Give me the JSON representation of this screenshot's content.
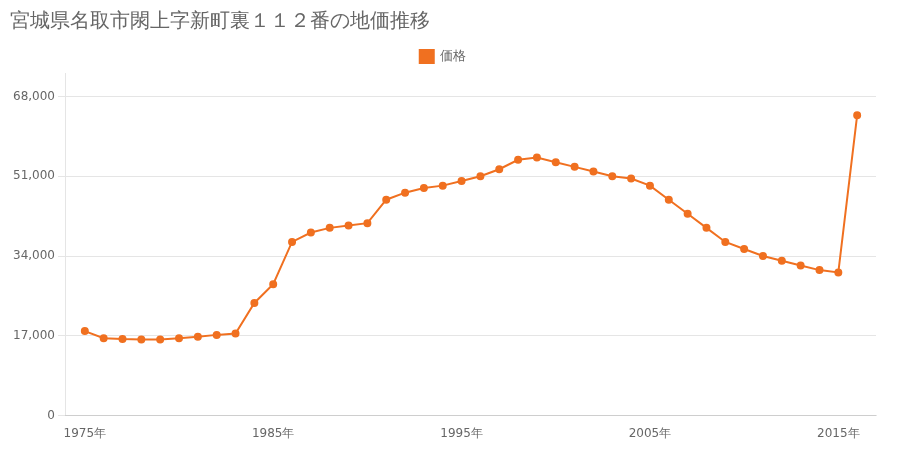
{
  "chart_data": {
    "type": "line",
    "title": "宮城県名取市閖上字新町裏１１２番の地価推移",
    "x": [
      1975,
      1976,
      1977,
      1978,
      1979,
      1980,
      1981,
      1982,
      1983,
      1984,
      1985,
      1986,
      1987,
      1988,
      1989,
      1990,
      1991,
      1992,
      1993,
      1994,
      1995,
      1996,
      1997,
      1998,
      1999,
      2000,
      2001,
      2002,
      2003,
      2004,
      2005,
      2006,
      2007,
      2008,
      2009,
      2010,
      2011,
      2012,
      2013,
      2014,
      2015,
      2016
    ],
    "series": [
      {
        "name": "価格",
        "color": "#F07020",
        "marker": "circle",
        "values": [
          18000,
          16500,
          16300,
          16200,
          16200,
          16500,
          16800,
          17200,
          17500,
          24000,
          28000,
          37000,
          39000,
          40000,
          40500,
          41000,
          46000,
          47500,
          48500,
          49000,
          50000,
          51000,
          52500,
          54500,
          55000,
          54000,
          53000,
          52000,
          51000,
          50500,
          49000,
          46000,
          43000,
          40000,
          37000,
          35500,
          34000,
          33000,
          32000,
          31000,
          30500,
          64000
        ]
      }
    ],
    "xlim": [
      1974,
      2017
    ],
    "xticks": [
      {
        "value": 1975,
        "label": "1975年"
      },
      {
        "value": 1985,
        "label": "1985年"
      },
      {
        "value": 1995,
        "label": "1995年"
      },
      {
        "value": 2005,
        "label": "2005年"
      },
      {
        "value": 2015,
        "label": "2015年"
      }
    ],
    "ylim": [
      0,
      73000
    ],
    "yticks": [
      0,
      {
        "value": 17000,
        "label": "17,000"
      },
      {
        "value": 34000,
        "label": "34,000"
      },
      {
        "value": 51000,
        "label": "51,000"
      },
      {
        "value": 68000,
        "label": "68,000"
      }
    ],
    "grid": "y",
    "legend": "top"
  }
}
